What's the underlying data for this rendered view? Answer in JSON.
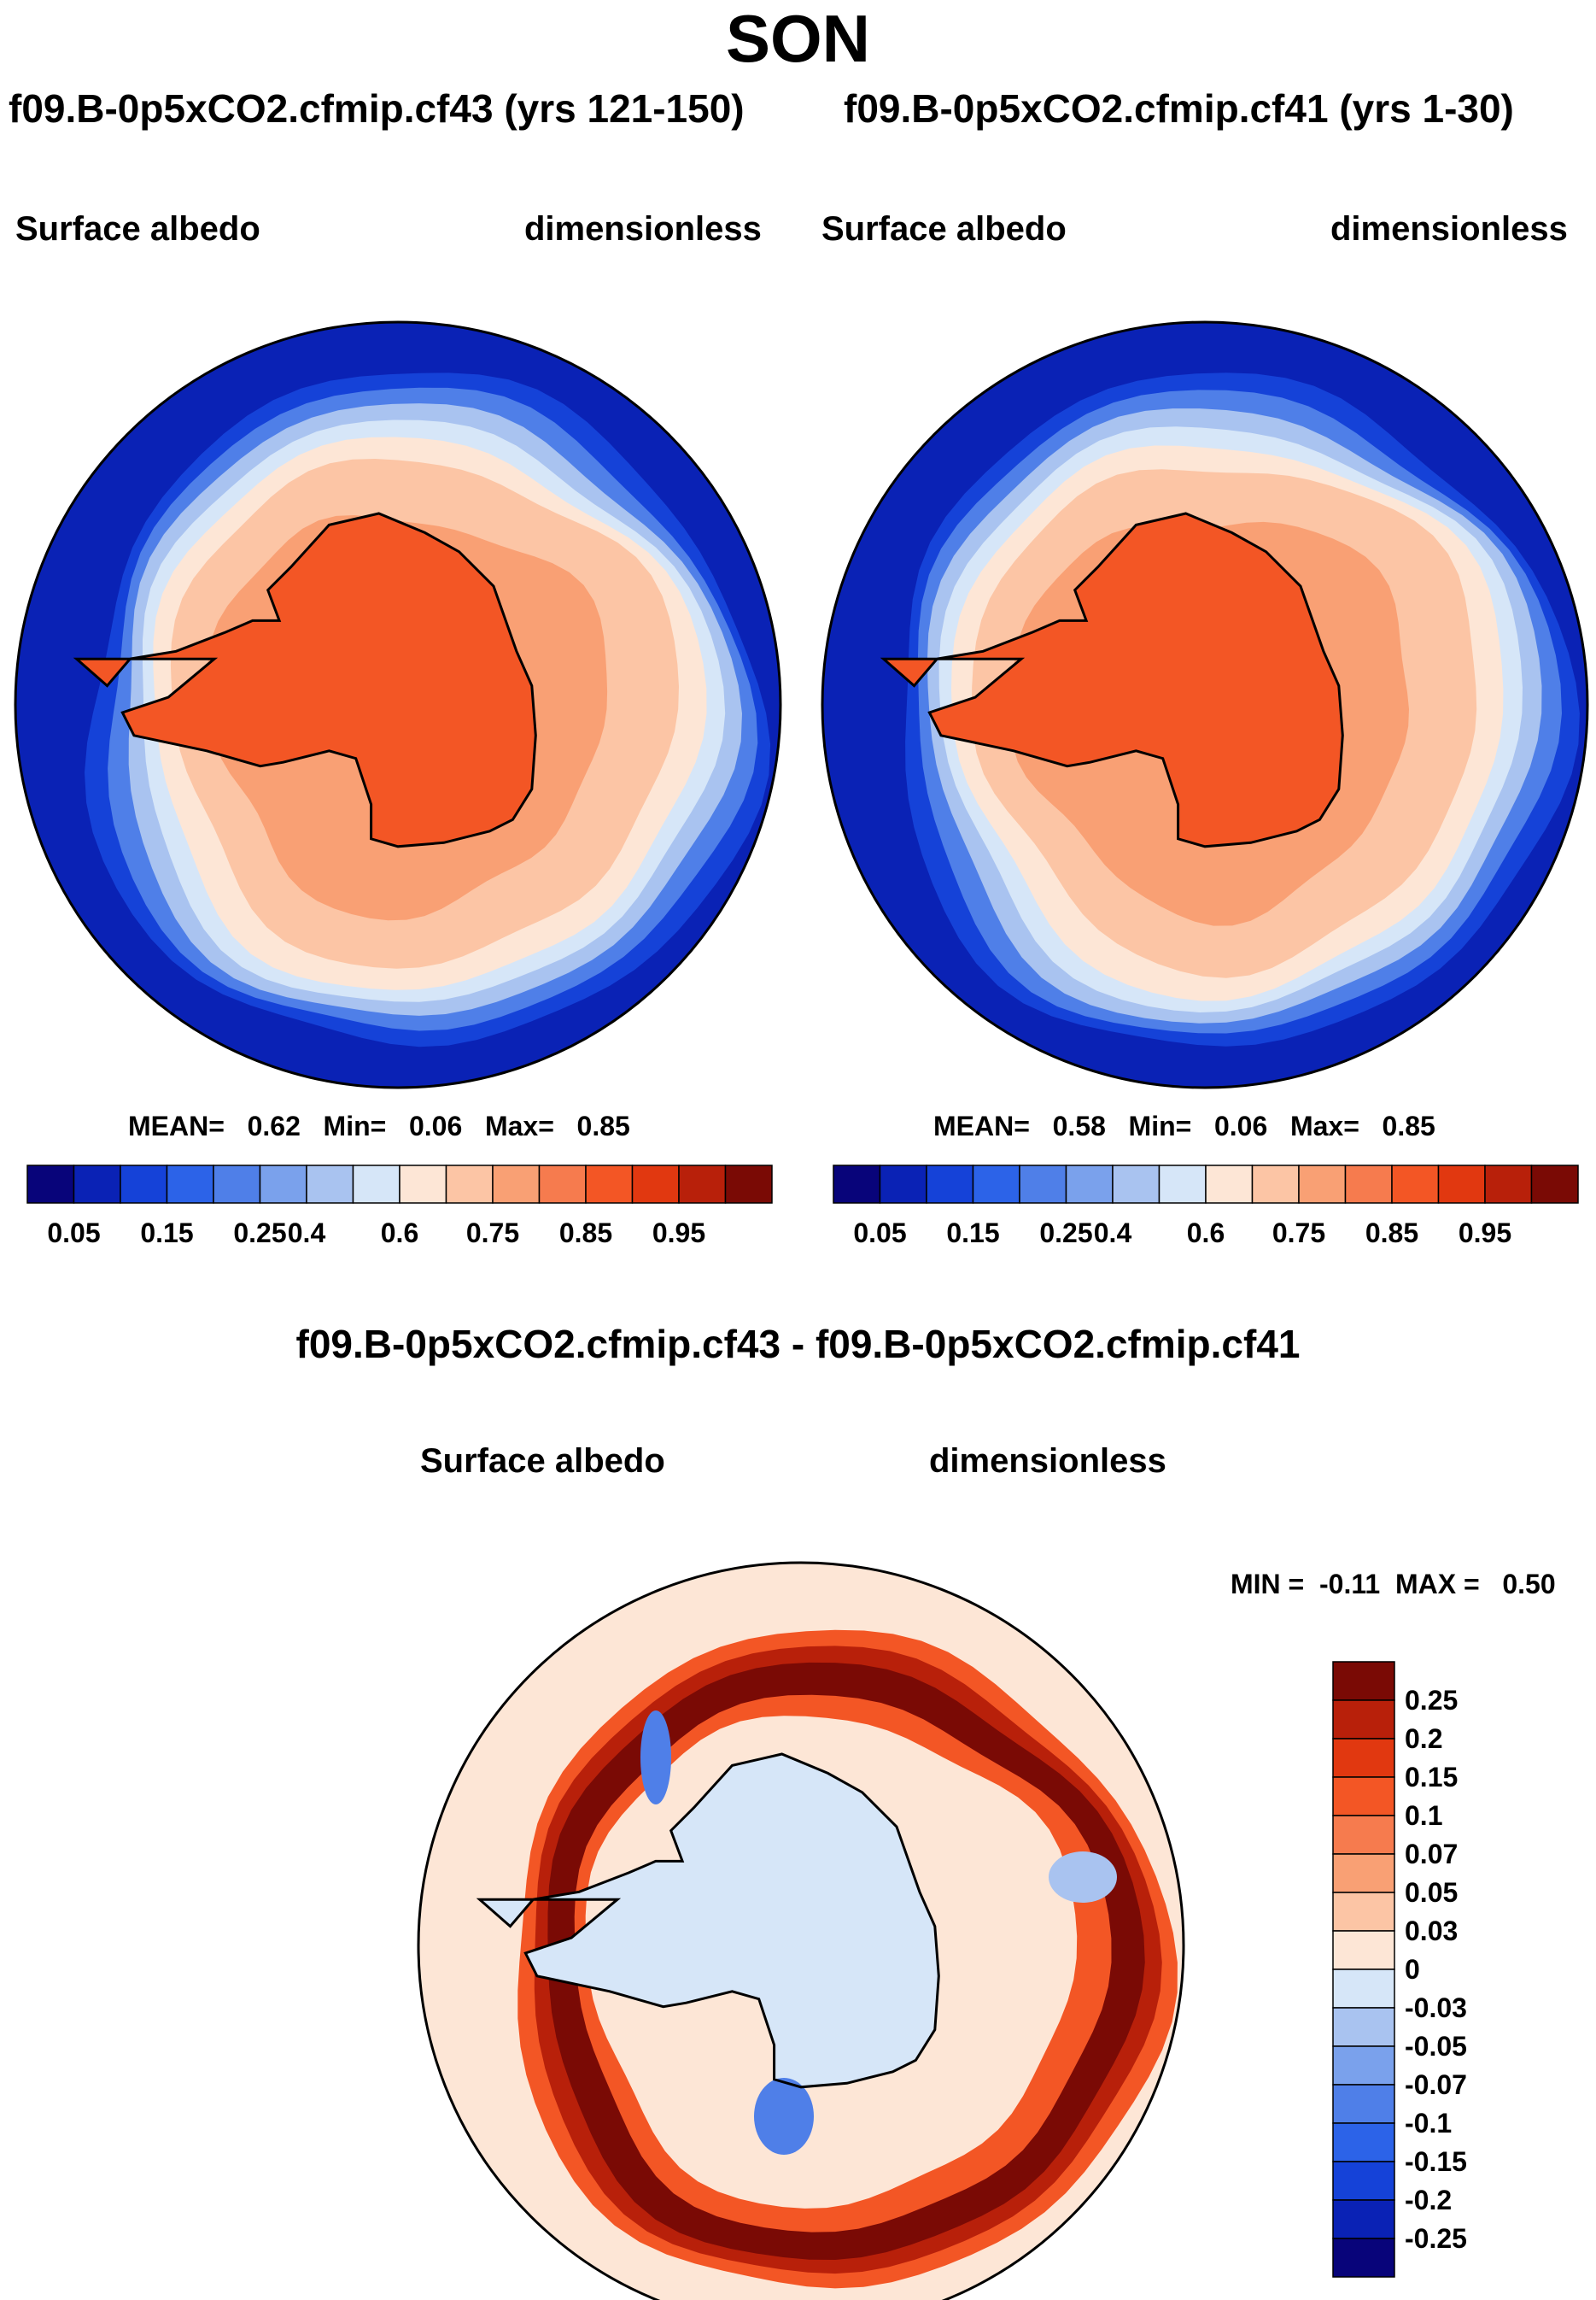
{
  "page": {
    "title": "SON"
  },
  "chart_data": [
    {
      "type": "heatmap",
      "projection": "south-polar-stereographic",
      "title": "f09.B-0p5xCO2.cfmip.cf43 (yrs 121-150)",
      "left_label": "Surface albedo",
      "right_label": "dimensionless",
      "stats": {
        "mean_label": "MEAN=",
        "mean": "0.62",
        "min_label": "Min=",
        "min": "0.06",
        "max_label": "Max=",
        "max": "0.85"
      },
      "levels": [
        0.05,
        0.1,
        0.15,
        0.2,
        0.25,
        0.3,
        0.4,
        0.5,
        0.6,
        0.7,
        0.75,
        0.8,
        0.85,
        0.9,
        0.95
      ],
      "tick_labels": [
        "0.05",
        "0.15",
        "0.25",
        "0.4",
        "0.6",
        "0.75",
        "0.85",
        "0.95"
      ],
      "regions": {
        "open_ocean": 0.07,
        "seaice_edge": 0.35,
        "pack_ice": 0.65,
        "inner_ice": 0.72,
        "continent": 0.82
      }
    },
    {
      "type": "heatmap",
      "projection": "south-polar-stereographic",
      "title": "f09.B-0p5xCO2.cfmip.cf41 (yrs 1-30)",
      "left_label": "Surface albedo",
      "right_label": "dimensionless",
      "stats": {
        "mean_label": "MEAN=",
        "mean": "0.58",
        "min_label": "Min=",
        "min": "0.06",
        "max_label": "Max=",
        "max": "0.85"
      },
      "levels": [
        0.05,
        0.1,
        0.15,
        0.2,
        0.25,
        0.3,
        0.4,
        0.5,
        0.6,
        0.7,
        0.75,
        0.8,
        0.85,
        0.9,
        0.95
      ],
      "tick_labels": [
        "0.05",
        "0.15",
        "0.25",
        "0.4",
        "0.6",
        "0.75",
        "0.85",
        "0.95"
      ],
      "regions": {
        "open_ocean": 0.07,
        "seaice_edge": 0.35,
        "pack_ice": 0.65,
        "inner_ice": 0.72,
        "continent": 0.82
      }
    },
    {
      "type": "heatmap",
      "projection": "south-polar-stereographic",
      "title": "f09.B-0p5xCO2.cfmip.cf43 - f09.B-0p5xCO2.cfmip.cf41",
      "left_label": "Surface albedo",
      "right_label": "dimensionless",
      "stats": {
        "min_label": "MIN =",
        "min": "-0.11",
        "max_label": "MAX =",
        "max": "0.50"
      },
      "levels": [
        -0.25,
        -0.2,
        -0.15,
        -0.1,
        -0.07,
        -0.05,
        -0.03,
        0,
        0.03,
        0.05,
        0.07,
        0.1,
        0.15,
        0.2,
        0.25
      ],
      "tick_labels": [
        "0.25",
        "0.2",
        "0.15",
        "0.1",
        "0.07",
        "0.05",
        "0.03",
        "0",
        "-0.03",
        "-0.05",
        "-0.07",
        "-0.1",
        "-0.15",
        "-0.2",
        "-0.25"
      ],
      "regions": {
        "outer_ocean": 0.02,
        "continent": -0.01,
        "ice_edge_band": 0.4,
        "ice_edge_margin": 0.12,
        "negative_patch": -0.08
      }
    }
  ],
  "colors": {
    "albedo": [
      "#08047a",
      "#0a22b5",
      "#1542d8",
      "#2c63e8",
      "#4f7fe8",
      "#7aa1ec",
      "#a9c3f0",
      "#d6e6f8",
      "#fde6d6",
      "#fcc5a5",
      "#f9a074",
      "#f67b4e",
      "#f35625",
      "#e13810",
      "#b8200a",
      "#7a0a05"
    ],
    "diff": [
      "#08047a",
      "#0a22b5",
      "#1542d8",
      "#2c63e8",
      "#4f7fe8",
      "#7aa1ec",
      "#a9c3f0",
      "#d6e6f8",
      "#fde6d6",
      "#fcc5a5",
      "#f9a074",
      "#f67b4e",
      "#f35625",
      "#e13810",
      "#b8200a",
      "#7a0a05"
    ]
  }
}
